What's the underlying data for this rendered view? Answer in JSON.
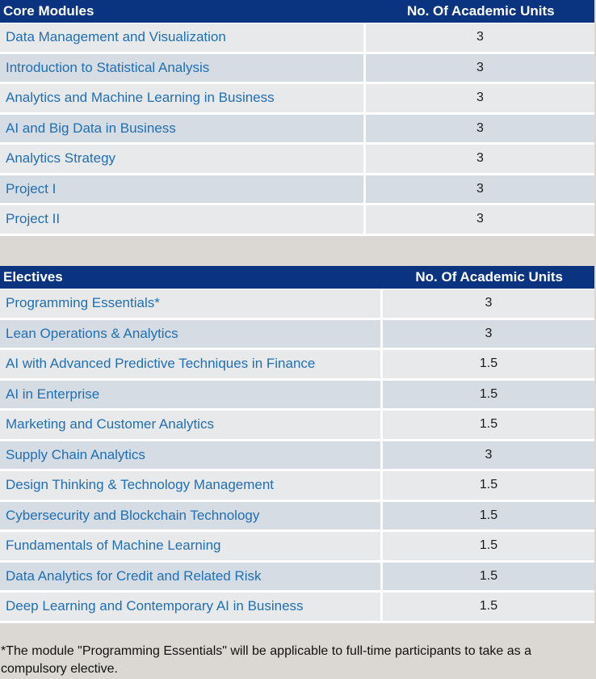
{
  "core": {
    "header_module": "Core Modules",
    "header_units": "No. Of Academic Units",
    "rows": [
      {
        "module": "Data Management and Visualization",
        "units": "3"
      },
      {
        "module": "Introduction to Statistical Analysis",
        "units": "3"
      },
      {
        "module": "Analytics and Machine Learning in Business",
        "units": "3"
      },
      {
        "module": "AI and Big Data in Business",
        "units": "3"
      },
      {
        "module": "Analytics Strategy",
        "units": "3"
      },
      {
        "module": "Project I",
        "units": "3"
      },
      {
        "module": "Project II",
        "units": "3"
      }
    ]
  },
  "electives": {
    "header_module": "Electives",
    "header_units": "No. Of Academic Units",
    "rows": [
      {
        "module": "Programming Essentials*",
        "units": "3"
      },
      {
        "module": "Lean Operations & Analytics",
        "units": "3"
      },
      {
        "module": "AI with Advanced Predictive Techniques in Finance",
        "units": "1.5"
      },
      {
        "module": "AI in Enterprise",
        "units": "1.5"
      },
      {
        "module": "Marketing and Customer Analytics",
        "units": "1.5"
      },
      {
        "module": "Supply Chain Analytics",
        "units": "3"
      },
      {
        "module": "Design Thinking & Technology Management",
        "units": "1.5"
      },
      {
        "module": "Cybersecurity and Blockchain Technology",
        "units": "1.5"
      },
      {
        "module": "Fundamentals of Machine Learning",
        "units": "1.5"
      },
      {
        "module": "Data Analytics for Credit and Related Risk",
        "units": "1.5"
      },
      {
        "module": "Deep Learning and Contemporary AI in Business",
        "units": "1.5"
      }
    ]
  },
  "footnote": "*The module \"Programming Essentials\" will be applicable to full-time participants to take as a compulsory elective.",
  "colors": {
    "header_bg": "#0b3480",
    "module_text": "#1f6fb2",
    "row_odd": "#e8e9eb",
    "row_even": "#d6dce4",
    "page_bg": "#dbd8d4"
  }
}
